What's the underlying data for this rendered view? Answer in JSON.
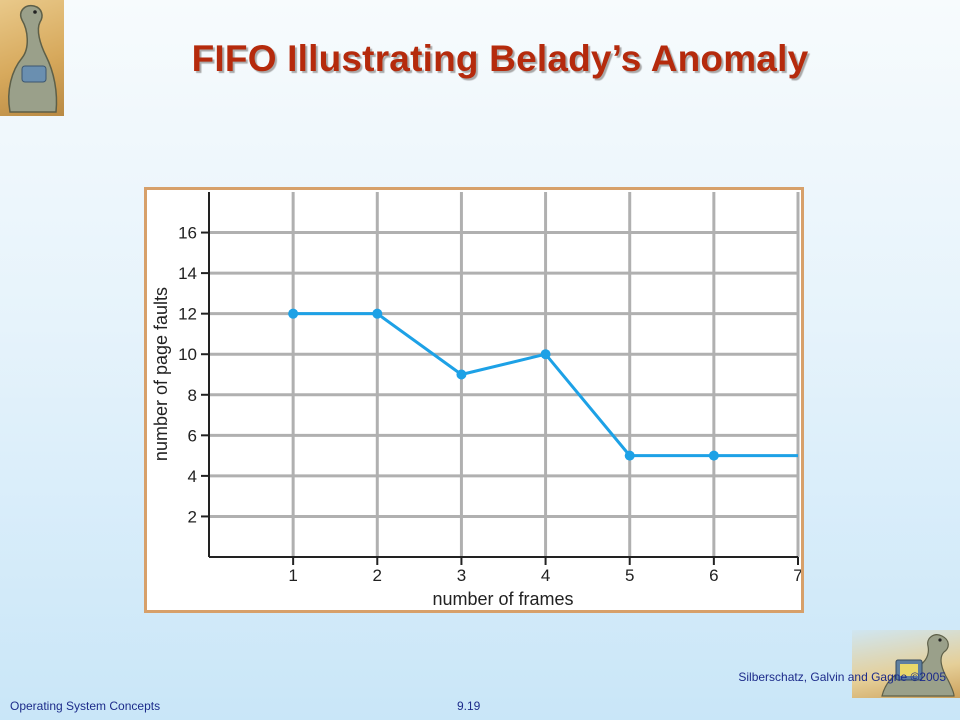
{
  "slide": {
    "title": "FIFO Illustrating Belady’s Anomaly",
    "footer_left": "Operating System Concepts",
    "footer_center": "9.19",
    "footer_right": "Silberschatz, Galvin and Gagne ©2005",
    "logo_icon": "dinosaur-icon"
  },
  "colors": {
    "title": "#b52a0c",
    "line": "#1da1e6",
    "grid": "#b0b0b0",
    "frame_border": "#d7a06a",
    "footer_text": "#1c2b8a"
  },
  "chart_data": {
    "type": "line",
    "title": "",
    "xlabel": "number of frames",
    "ylabel": "number of page faults",
    "x": [
      1,
      2,
      3,
      4,
      5,
      6,
      7
    ],
    "series": [
      {
        "values": [
          12,
          12,
          9,
          10,
          5,
          5,
          5
        ]
      }
    ],
    "markers_shown_for": [
      1,
      2,
      3,
      4,
      5,
      6
    ],
    "xlim": [
      0,
      7
    ],
    "ylim": [
      0,
      18
    ],
    "xticks": [
      1,
      2,
      3,
      4,
      5,
      6,
      7
    ],
    "yticks": [
      2,
      4,
      6,
      8,
      10,
      12,
      14,
      16
    ],
    "grid": true,
    "legend": "none"
  }
}
